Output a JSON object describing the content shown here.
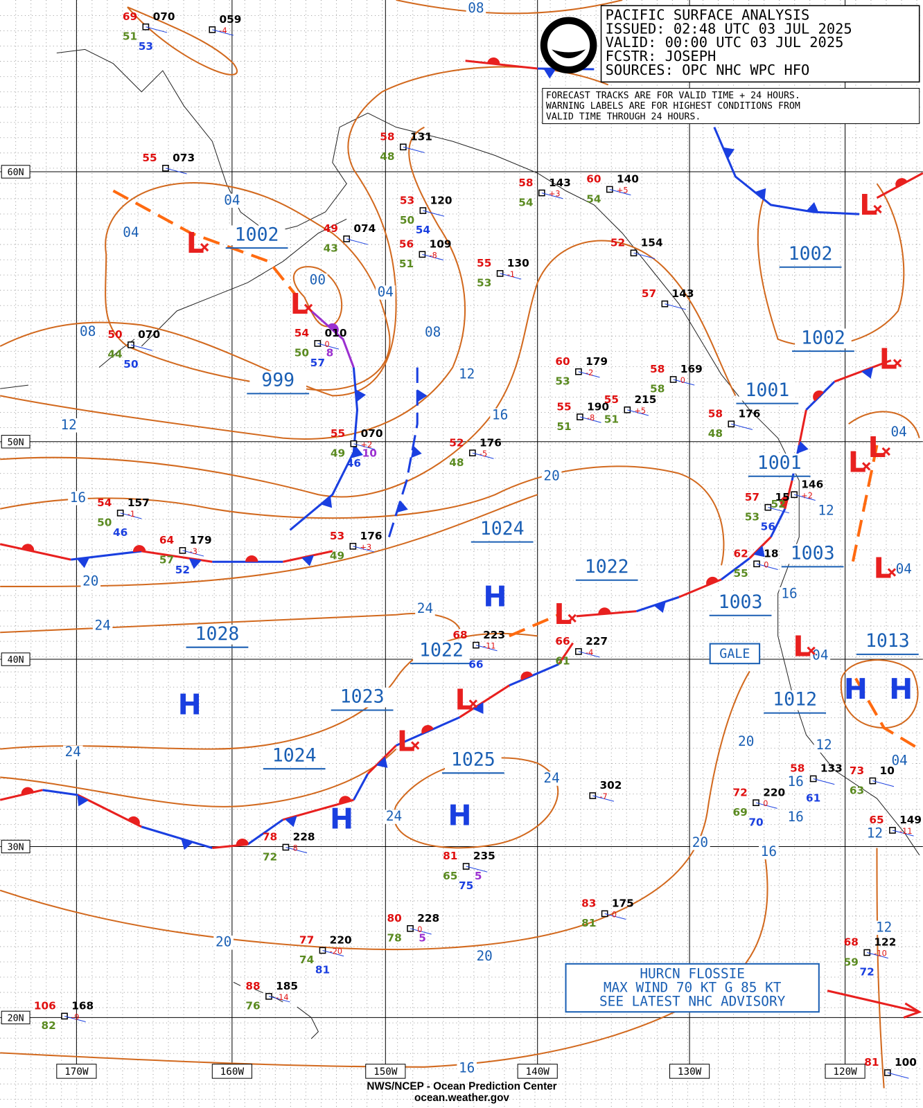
{
  "header": {
    "lines": [
      "PACIFIC SURFACE ANALYSIS",
      "ISSUED: 02:48 UTC 03 JUL 2025",
      "VALID:  00:00 UTC 03 JUL 2025",
      "FCSTR:  JOSEPH",
      "SOURCES: OPC NHC WPC HFO"
    ]
  },
  "notice": {
    "lines": [
      "FORECAST TRACKS ARE FOR VALID TIME + 24 HOURS.",
      "WARNING LABELS ARE FOR HIGHEST CONDITIONS FROM",
      "VALID TIME THROUGH 24 HOURS."
    ]
  },
  "gale_label": "GALE",
  "hurricane": {
    "lines": [
      "HURCN FLOSSIE",
      "MAX WIND 70 KT G 85 KT",
      "SEE LATEST NHC ADVISORY"
    ]
  },
  "footer": {
    "lines": [
      "NWS/NCEP - Ocean Prediction Center",
      "ocean.weather.gov"
    ]
  },
  "lat_labels": [
    "60N",
    "50N",
    "40N",
    "30N",
    "20N"
  ],
  "lon_labels": [
    "170W",
    "160W",
    "150W",
    "140W",
    "130W",
    "120W"
  ],
  "pressure_labels": [
    "1002",
    "999",
    "1002",
    "1002",
    "1001",
    "1001",
    "1024",
    "1022",
    "1003",
    "1003",
    "1028",
    "1022",
    "1013",
    "1023",
    "1012",
    "1024",
    "1025"
  ],
  "isobar_labels": [
    "08",
    "04",
    "04",
    "00",
    "04",
    "08",
    "08",
    "12",
    "16",
    "12",
    "16",
    "20",
    "20",
    "24",
    "24",
    "24",
    "24",
    "24",
    "20",
    "20",
    "20",
    "16",
    "16",
    "16",
    "16",
    "16",
    "12",
    "12",
    "12",
    "12",
    "04",
    "04",
    "04",
    "04",
    "20"
  ],
  "centers": [
    "H",
    "H",
    "H",
    "H",
    "H",
    "H",
    "L",
    "L",
    "L",
    "L",
    "L",
    "L",
    "L",
    "L",
    "L",
    "L",
    "L"
  ],
  "stations": [
    {
      "t": "69",
      "p": "070",
      "d": "51",
      "s": "53"
    },
    {
      "p": "059",
      "c": "-4"
    },
    {
      "t": "55",
      "p": "073"
    },
    {
      "t": "49",
      "p": "074",
      "d": "43"
    },
    {
      "t": "50",
      "p": "070",
      "d": "44",
      "s": "50"
    },
    {
      "t": "54",
      "p": "010",
      "c": "0",
      "d": "50",
      "s": "57",
      "x": "8"
    },
    {
      "t": "58",
      "p": "131",
      "d": "48"
    },
    {
      "t": "53",
      "p": "120",
      "d": "50",
      "s": "54"
    },
    {
      "t": "56",
      "p": "109",
      "c": "-8",
      "d": "51"
    },
    {
      "t": "55",
      "p": "130",
      "c": "-1",
      "d": "53"
    },
    {
      "t": "58",
      "p": "143",
      "c": "+3",
      "d": "54"
    },
    {
      "t": "60",
      "p": "140",
      "c": "+5",
      "d": "54"
    },
    {
      "t": "52",
      "p": "154"
    },
    {
      "t": "57",
      "p": "143"
    },
    {
      "t": "60",
      "p": "179",
      "c": "-2",
      "d": "53"
    },
    {
      "t": "58",
      "p": "169",
      "c": "0",
      "d": "58"
    },
    {
      "t": "55",
      "p": "190",
      "c": "-8",
      "d": "51"
    },
    {
      "t": "55",
      "p": "215",
      "c": "+5",
      "d": "51"
    },
    {
      "t": "58",
      "p": "176",
      "d": "48"
    },
    {
      "t": "55",
      "p": "070",
      "c": "+2",
      "d": "49",
      "s": "46",
      "x": "10"
    },
    {
      "t": "52",
      "p": "176",
      "c": "-5",
      "d": "48"
    },
    {
      "t": "54",
      "p": "157",
      "c": "-1",
      "d": "50",
      "s": "46"
    },
    {
      "t": "64",
      "p": "179",
      "c": "-3",
      "d": "57",
      "s": "52"
    },
    {
      "t": "53",
      "p": "176",
      "c": "+3",
      "d": "49"
    },
    {
      "t": "57",
      "p": "15",
      "d": "53",
      "s": "56"
    },
    {
      "p": "146",
      "c": "+2",
      "d": "52"
    },
    {
      "t": "62",
      "p": "18",
      "c": "0",
      "d": "55"
    },
    {
      "t": "68",
      "p": "223",
      "c": "-11",
      "s": "66"
    },
    {
      "t": "66",
      "p": "227",
      "c": "-4",
      "d": "61"
    },
    {
      "p": "302",
      "c": "-7"
    },
    {
      "t": "72",
      "p": "220",
      "c": "0",
      "d": "69",
      "s": "70"
    },
    {
      "t": "58",
      "p": "133",
      "s": "61"
    },
    {
      "t": "73",
      "p": "10",
      "d": "63"
    },
    {
      "t": "65",
      "p": "149",
      "c": "-11"
    },
    {
      "t": "78",
      "p": "228",
      "c": "8",
      "d": "72"
    },
    {
      "t": "81",
      "p": "235",
      "d": "65",
      "s": "75",
      "x": "5"
    },
    {
      "t": "80",
      "p": "228",
      "c": "0",
      "d": "78",
      "x": "5"
    },
    {
      "t": "83",
      "p": "175",
      "c": "0",
      "d": "81"
    },
    {
      "t": "77",
      "p": "220",
      "c": "-20",
      "d": "74",
      "s": "81"
    },
    {
      "t": "68",
      "p": "122",
      "c": "-10",
      "d": "59",
      "s": "72"
    },
    {
      "t": "88",
      "p": "185",
      "c": "-14",
      "d": "76"
    },
    {
      "t": "106",
      "p": "168",
      "c": "-9",
      "d": "82"
    },
    {
      "t": "81",
      "p": "100"
    }
  ]
}
